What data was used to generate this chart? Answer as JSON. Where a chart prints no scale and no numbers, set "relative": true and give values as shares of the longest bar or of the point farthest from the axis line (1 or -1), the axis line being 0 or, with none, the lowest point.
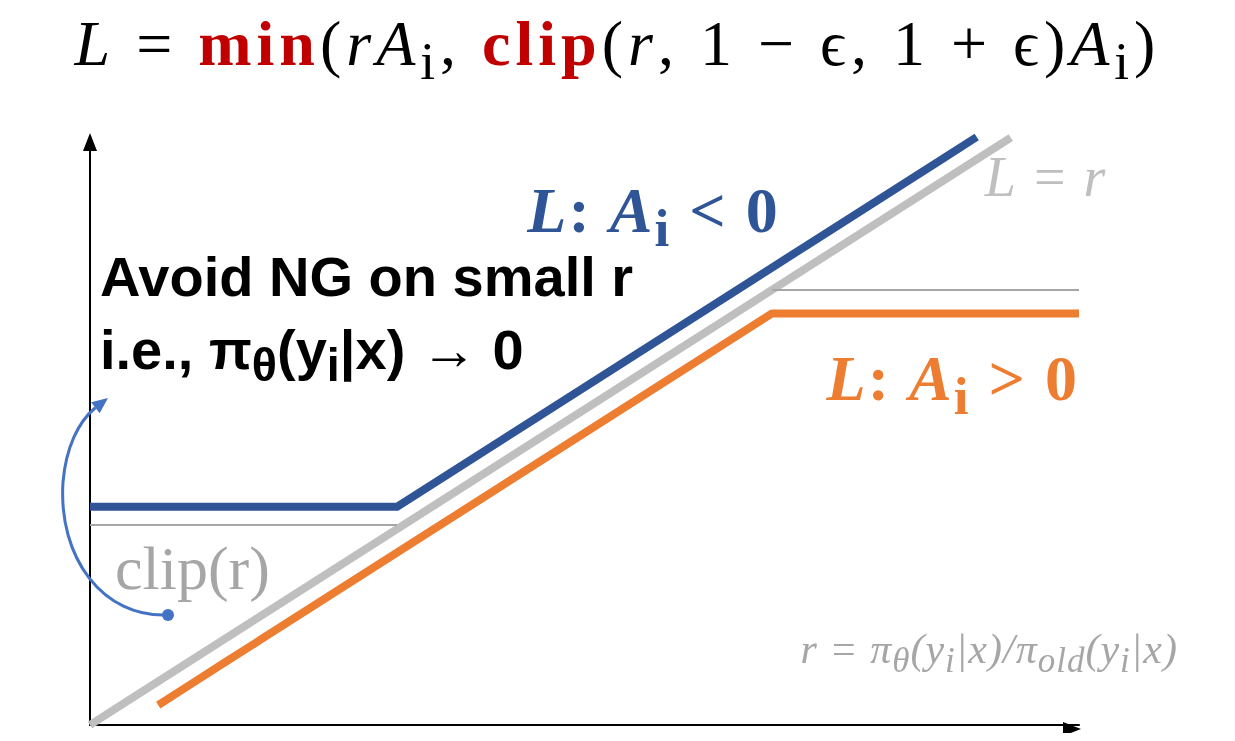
{
  "chart_data": {
    "type": "line",
    "title": "L = min(rA$_{i}$, clip(r, 1 − ϵ, 1 + ϵ)A$_{i}$)",
    "xlabel": "r = π$_{θ}$(y$_{i}$|x)/π$_{old}$(y$_{i}$|x)",
    "relative": true,
    "marker": "none",
    "line_style": "solid",
    "categories": [
      null,
      null,
      null,
      null,
      null,
      null,
      null,
      null,
      null,
      null,
      null,
      null,
      null,
      null,
      null,
      null,
      null,
      null,
      null,
      null,
      null,
      null,
      null,
      null,
      null,
      null,
      null,
      null,
      null,
      null
    ],
    "series": [
      {
        "name": "L: A$_{i}$ < 0",
        "color": "#2f5597",
        "values": [
          0.371,
          0.371,
          0.371,
          0.371,
          0.371,
          0.371,
          0.371,
          0.371,
          0.371,
          0.371,
          0.408,
          0.445,
          0.482,
          0.519,
          0.556,
          0.593,
          0.63,
          0.667,
          0.704,
          0.741,
          0.778,
          0.815,
          0.852,
          0.889,
          0.926,
          0.963,
          1,
          null,
          null,
          null
        ]
      },
      {
        "name": "L = r",
        "color": "#bfbfbf",
        "values": [
          0,
          0.037,
          0.074,
          0.111,
          0.148,
          0.185,
          0.222,
          0.259,
          0.296,
          0.333,
          0.37,
          0.407,
          0.444,
          0.481,
          0.518,
          0.555,
          0.592,
          0.629,
          0.666,
          0.703,
          0.74,
          0.777,
          0.814,
          0.851,
          0.888,
          0.925,
          0.962,
          0.999,
          null,
          null
        ]
      },
      {
        "name": "L: A$_{i}$ > 0",
        "color": "#ed7d31",
        "values": [
          null,
          null,
          0.034,
          0.071,
          0.108,
          0.145,
          0.182,
          0.219,
          0.256,
          0.293,
          0.33,
          0.367,
          0.404,
          0.441,
          0.478,
          0.515,
          0.552,
          0.589,
          0.626,
          0.663,
          0.7,
          0.7,
          0.7,
          0.7,
          0.7,
          0.7,
          0.7,
          0.7,
          0.7,
          0.7
        ]
      },
      {
        "color": "#a6a6a6",
        "values": [
          0.34,
          0.34,
          0.34,
          0.34,
          0.34,
          0.34,
          0.34,
          0.34,
          0.34,
          0.34,
          null,
          null,
          null,
          null,
          null,
          null,
          null,
          null,
          null,
          null,
          null,
          null,
          null,
          null,
          null,
          null,
          null,
          null,
          null,
          null
        ]
      },
      {
        "color": "#a6a6a6",
        "values": [
          null,
          null,
          null,
          null,
          null,
          null,
          null,
          null,
          null,
          null,
          null,
          null,
          null,
          null,
          null,
          null,
          null,
          null,
          null,
          null,
          0.74,
          0.74,
          0.74,
          0.74,
          0.74,
          0.74,
          0.74,
          0.74,
          0.74,
          0.74
        ]
      }
    ],
    "annotations": [
      "Avoid NG on small r",
      "i.e., π$_{θ}$(y$_{i}$|x) → 0",
      "clip(r)"
    ]
  }
}
